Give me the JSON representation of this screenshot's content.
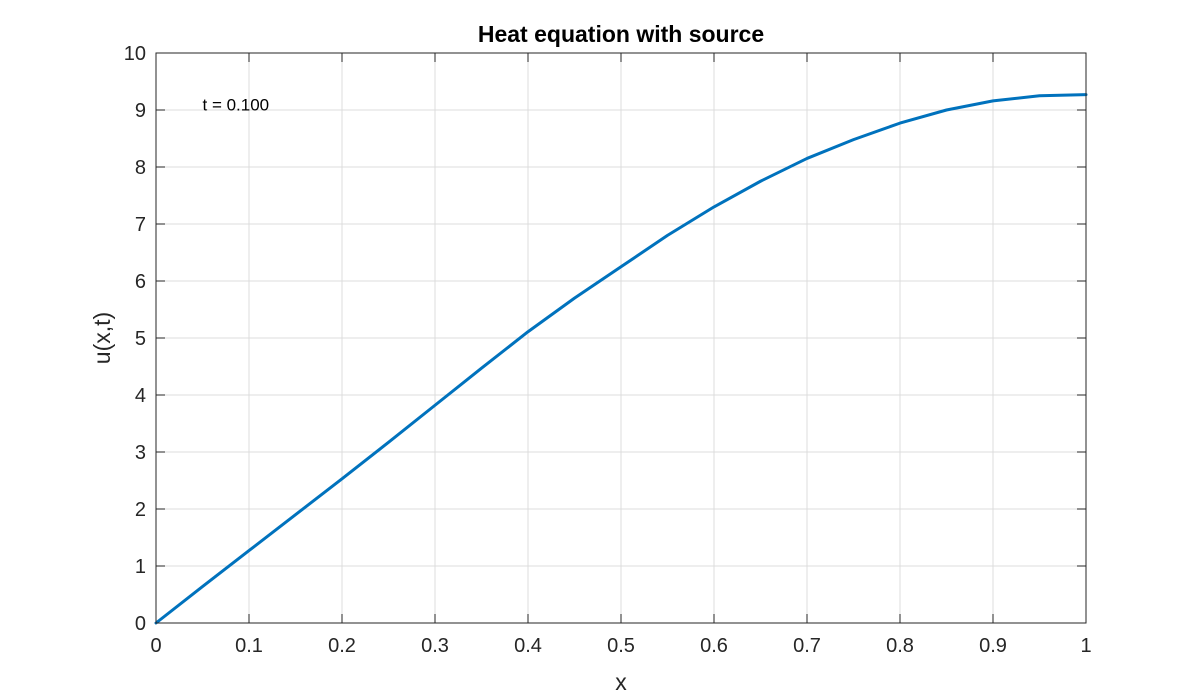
{
  "chart_data": {
    "type": "line",
    "title": "Heat equation with source",
    "xlabel": "x",
    "ylabel": "u(x,t)",
    "xlim": [
      0,
      1
    ],
    "ylim": [
      0,
      10
    ],
    "x_ticks": [
      0,
      0.1,
      0.2,
      0.3,
      0.4,
      0.5,
      0.6,
      0.7,
      0.8,
      0.9,
      1
    ],
    "x_tick_labels": [
      "0",
      "0.1",
      "0.2",
      "0.3",
      "0.4",
      "0.5",
      "0.6",
      "0.7",
      "0.8",
      "0.9",
      "1"
    ],
    "y_ticks": [
      0,
      1,
      2,
      3,
      4,
      5,
      6,
      7,
      8,
      9,
      10
    ],
    "y_tick_labels": [
      "0",
      "1",
      "2",
      "3",
      "4",
      "5",
      "6",
      "7",
      "8",
      "9",
      "10"
    ],
    "grid": true,
    "annotation": {
      "text": "t = 0.100",
      "x": 0.05,
      "y": 9.1
    },
    "series": [
      {
        "color": "#0072BD",
        "x": [
          0,
          0.05,
          0.1,
          0.15,
          0.2,
          0.25,
          0.3,
          0.35,
          0.4,
          0.45,
          0.5,
          0.55,
          0.6,
          0.65,
          0.7,
          0.75,
          0.8,
          0.85,
          0.9,
          0.95,
          1.0
        ],
        "y": [
          0,
          0.64,
          1.27,
          1.9,
          2.53,
          3.17,
          3.82,
          4.47,
          5.11,
          5.7,
          6.25,
          6.8,
          7.3,
          7.75,
          8.15,
          8.48,
          8.77,
          9.0,
          9.16,
          9.25,
          9.27
        ]
      }
    ]
  }
}
